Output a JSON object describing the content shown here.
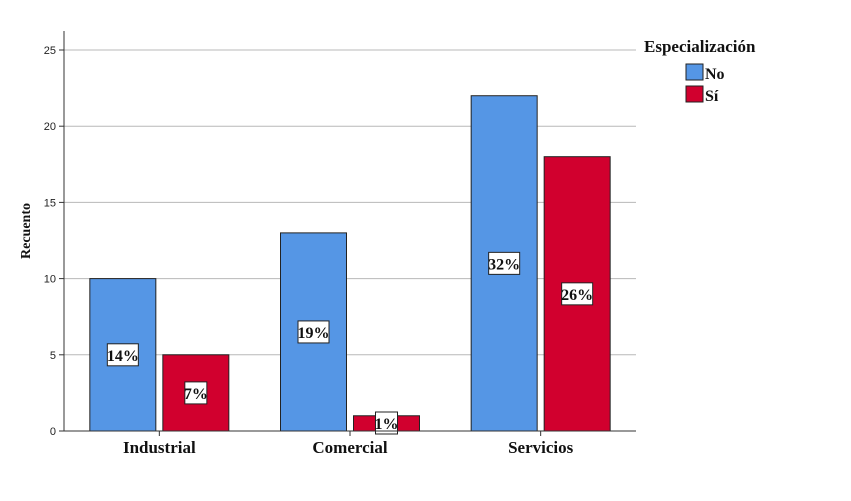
{
  "chart_data": {
    "type": "bar",
    "title": "",
    "xlabel": "",
    "ylabel": "Recuento",
    "ylim": [
      0,
      25
    ],
    "yticks": [
      0,
      5,
      10,
      15,
      20,
      25
    ],
    "grid": true,
    "categories": [
      "Industrial",
      "Comercial",
      "Servicios"
    ],
    "legend_title": "Especialización",
    "legend_position": "top-right",
    "series": [
      {
        "name": "No",
        "color": "#5596E5",
        "values": [
          10,
          13,
          22
        ],
        "labels": [
          "14%",
          "19%",
          "32%"
        ]
      },
      {
        "name": "Sí",
        "color": "#D1002E",
        "values": [
          5,
          1,
          18
        ],
        "labels": [
          "7%",
          "1%",
          "26%"
        ]
      }
    ]
  }
}
